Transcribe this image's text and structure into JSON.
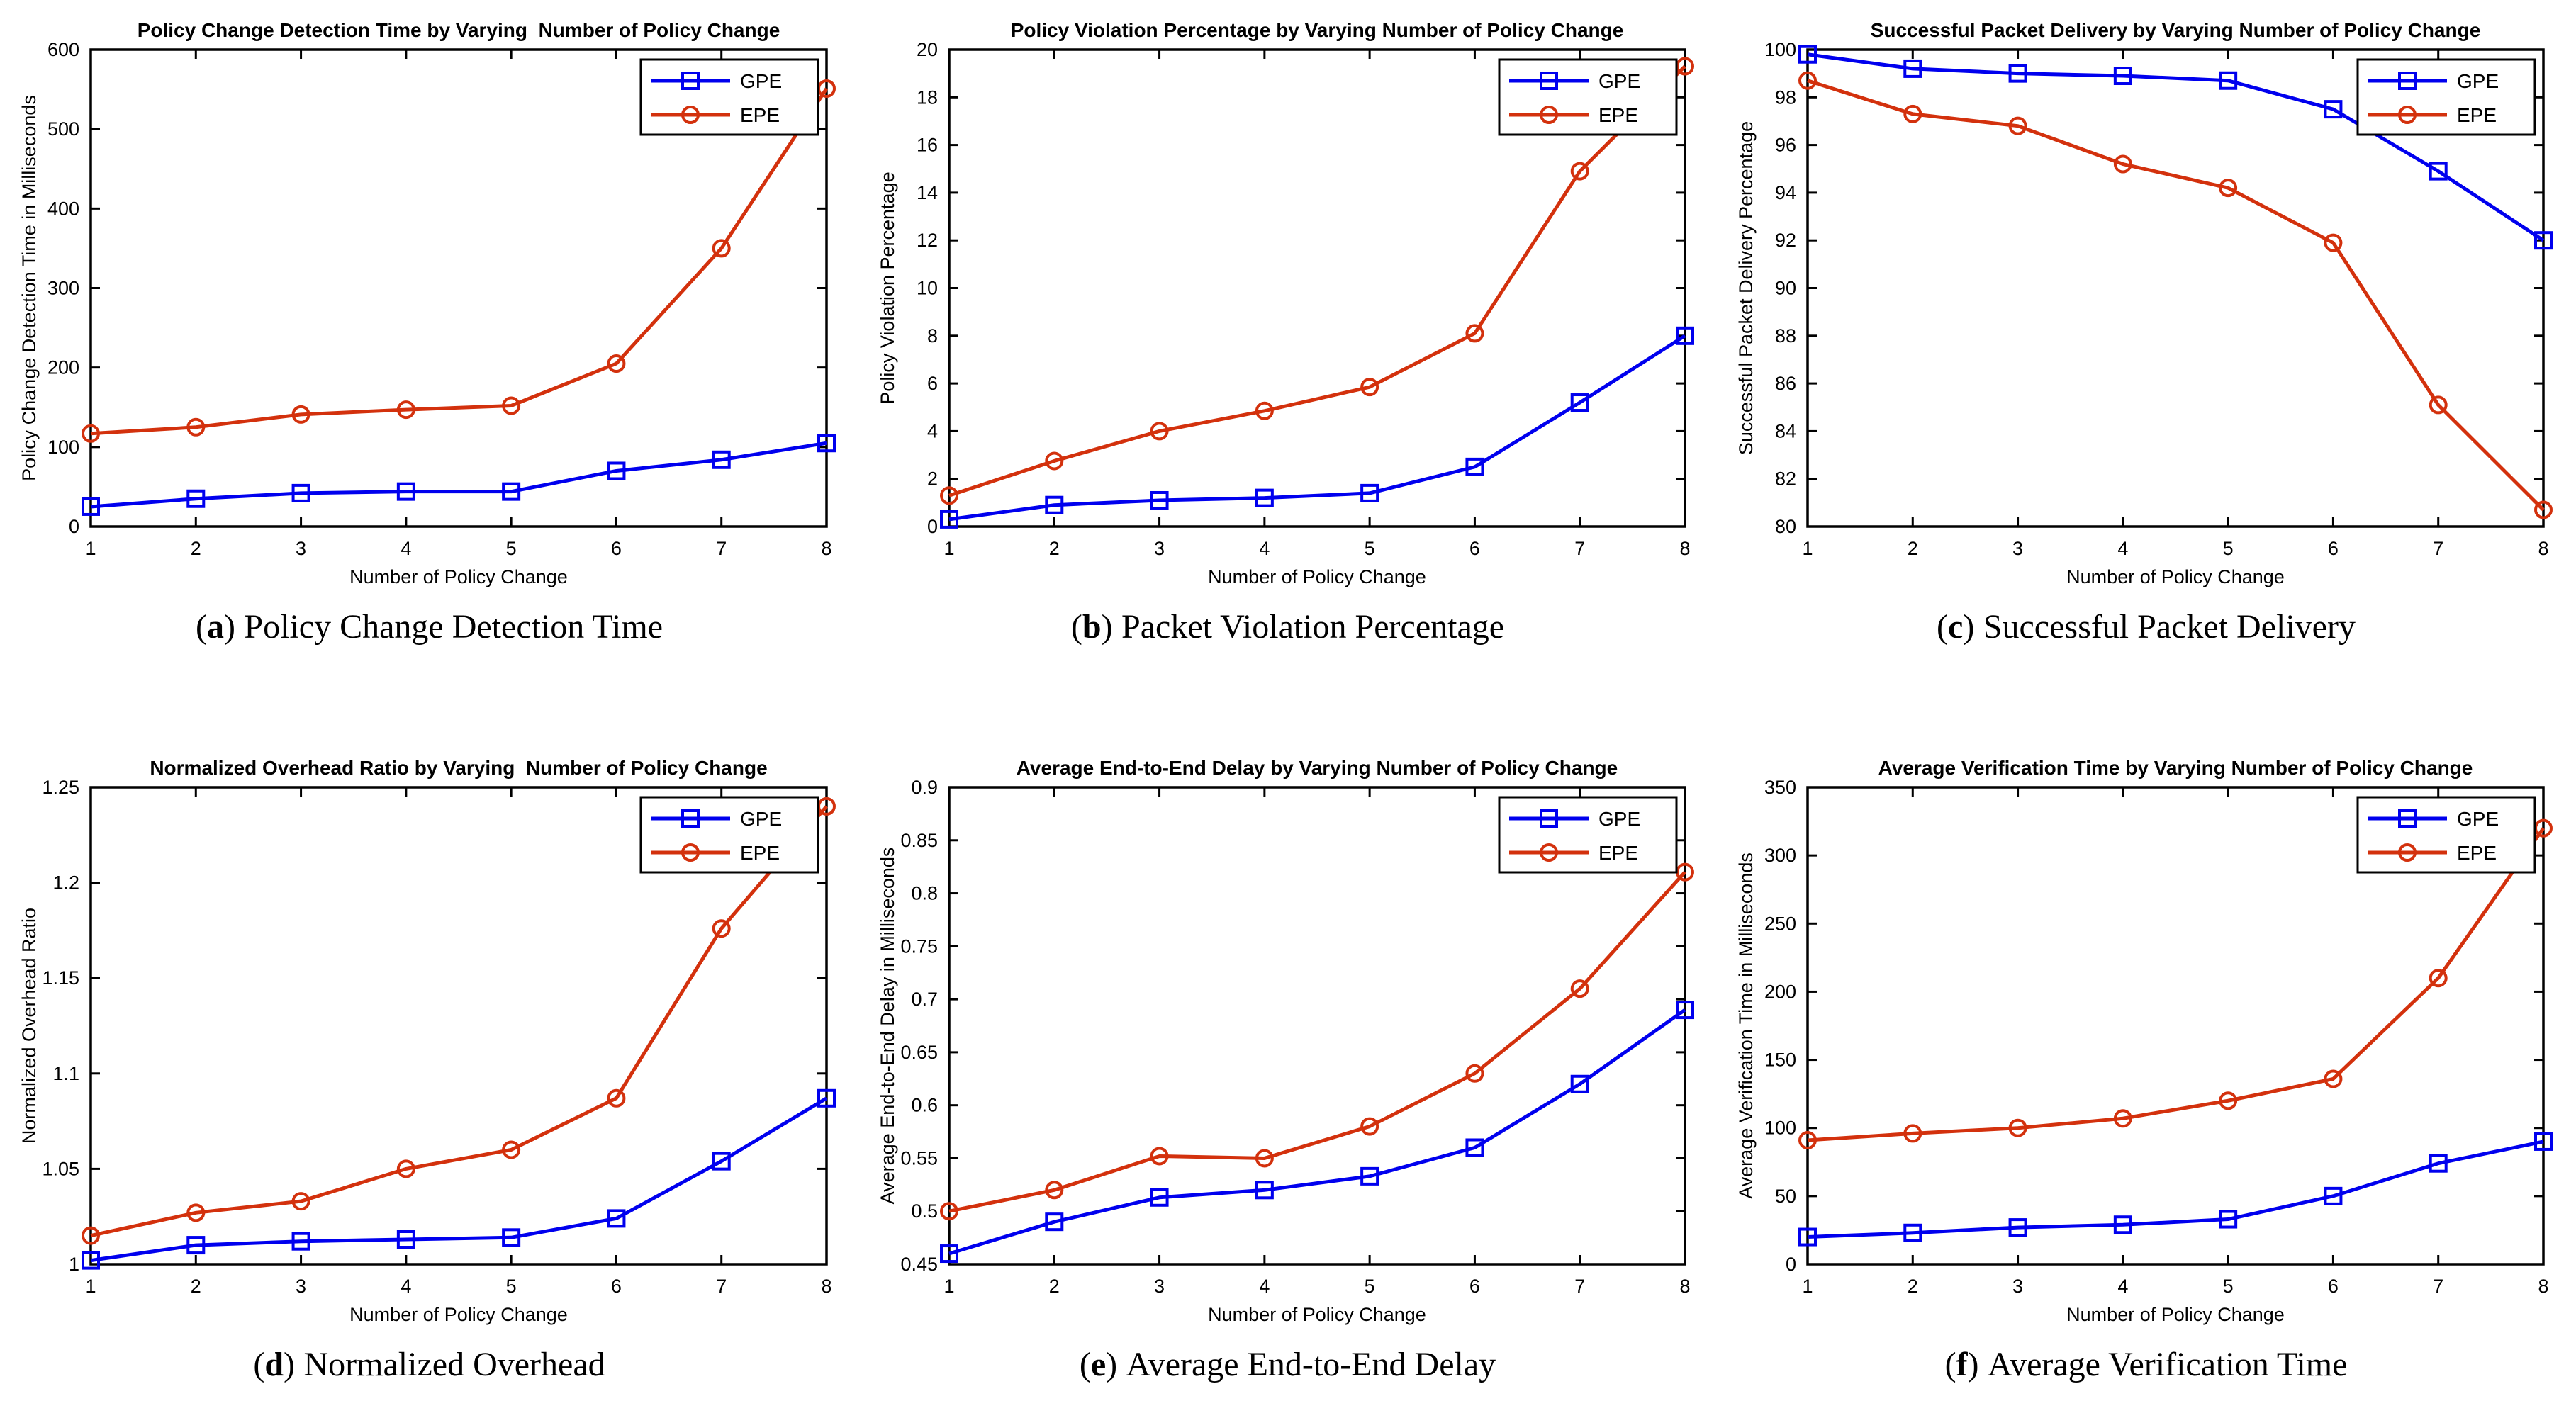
{
  "page": {
    "background": "#ffffff"
  },
  "colors": {
    "gpe": "#0000ee",
    "epe": "#d3310d",
    "axis": "#000000",
    "legend_bg": "#ffffff"
  },
  "chart_data": [
    {
      "id": "a",
      "type": "line",
      "title": "Policy Change Detection Time by Varying  Number of Policy Change",
      "xlabel": "Number of Policy Change",
      "ylabel": "Policy Change Detection Time in Milliseconds",
      "x": [
        1,
        2,
        3,
        4,
        5,
        6,
        7,
        8
      ],
      "xlim": [
        1,
        8
      ],
      "ylim": [
        0,
        600
      ],
      "xticks": [
        1,
        2,
        3,
        4,
        5,
        6,
        7,
        8
      ],
      "yticks": [
        0,
        100,
        200,
        300,
        400,
        500,
        600
      ],
      "ytick_labels": [
        "0",
        "100",
        "200",
        "300",
        "400",
        "500",
        "600"
      ],
      "grid": false,
      "legend_position": "top-right",
      "series": [
        {
          "name": "GPE",
          "color": "#0000ee",
          "marker": "square",
          "values": [
            25,
            35,
            42,
            44,
            44,
            70,
            84,
            105
          ]
        },
        {
          "name": "EPE",
          "color": "#d3310d",
          "marker": "circle",
          "values": [
            117,
            125,
            141,
            147,
            152,
            205,
            350,
            551
          ]
        }
      ],
      "caption": {
        "open": "(",
        "letter": "a",
        "close": ")",
        "text": "Policy Change Detection Time"
      }
    },
    {
      "id": "b",
      "type": "line",
      "title": "Policy Violation Percentage by Varying Number of Policy Change",
      "xlabel": "Number of Policy Change",
      "ylabel": "Policy Violation Percentage",
      "x": [
        1,
        2,
        3,
        4,
        5,
        6,
        7,
        8
      ],
      "xlim": [
        1,
        8
      ],
      "ylim": [
        0,
        20
      ],
      "xticks": [
        1,
        2,
        3,
        4,
        5,
        6,
        7,
        8
      ],
      "yticks": [
        0,
        2,
        4,
        6,
        8,
        10,
        12,
        14,
        16,
        18,
        20
      ],
      "ytick_labels": [
        "0",
        "2",
        "4",
        "6",
        "8",
        "10",
        "12",
        "14",
        "16",
        "18",
        "20"
      ],
      "grid": false,
      "legend_position": "top-right",
      "series": [
        {
          "name": "GPE",
          "color": "#0000ee",
          "marker": "square",
          "values": [
            0.3,
            0.9,
            1.1,
            1.2,
            1.4,
            2.5,
            5.2,
            8.0
          ]
        },
        {
          "name": "EPE",
          "color": "#d3310d",
          "marker": "circle",
          "values": [
            1.3,
            2.75,
            4.0,
            4.85,
            5.85,
            8.1,
            14.9,
            19.3
          ]
        }
      ],
      "caption": {
        "open": "(",
        "letter": "b",
        "close": ")",
        "text": "Packet Violation Percentage"
      }
    },
    {
      "id": "c",
      "type": "line",
      "title": "Successful Packet Delivery by Varying Number of Policy Change",
      "xlabel": "Number of Policy Change",
      "ylabel": "Successful Packet Delivery Percentage",
      "x": [
        1,
        2,
        3,
        4,
        5,
        6,
        7,
        8
      ],
      "xlim": [
        1,
        8
      ],
      "ylim": [
        80,
        100
      ],
      "xticks": [
        1,
        2,
        3,
        4,
        5,
        6,
        7,
        8
      ],
      "yticks": [
        80,
        82,
        84,
        86,
        88,
        90,
        92,
        94,
        96,
        98,
        100
      ],
      "ytick_labels": [
        "80",
        "82",
        "84",
        "86",
        "88",
        "90",
        "92",
        "94",
        "96",
        "98",
        "100"
      ],
      "grid": false,
      "legend_position": "top-right",
      "series": [
        {
          "name": "GPE",
          "color": "#0000ee",
          "marker": "square",
          "values": [
            99.8,
            99.2,
            99.0,
            98.9,
            98.7,
            97.5,
            94.9,
            92.0
          ]
        },
        {
          "name": "EPE",
          "color": "#d3310d",
          "marker": "circle",
          "values": [
            98.7,
            97.3,
            96.8,
            95.2,
            94.2,
            91.9,
            85.1,
            80.7
          ]
        }
      ],
      "caption": {
        "open": "(",
        "letter": "c",
        "close": ")",
        "text": "Successful Packet Delivery"
      }
    },
    {
      "id": "d",
      "type": "line",
      "title": "Normalized Overhead Ratio by Varying  Number of Policy Change",
      "xlabel": "Number of Policy Change",
      "ylabel": "Normalized Overhead Ratio",
      "x": [
        1,
        2,
        3,
        4,
        5,
        6,
        7,
        8
      ],
      "xlim": [
        1,
        8
      ],
      "ylim": [
        1,
        1.25
      ],
      "xticks": [
        1,
        2,
        3,
        4,
        5,
        6,
        7,
        8
      ],
      "yticks": [
        1,
        1.05,
        1.1,
        1.15,
        1.2,
        1.25
      ],
      "ytick_labels": [
        "1",
        "1.05",
        "1.1",
        "1.15",
        "1.2",
        "1.25"
      ],
      "grid": false,
      "legend_position": "top-right",
      "series": [
        {
          "name": "GPE",
          "color": "#0000ee",
          "marker": "square",
          "values": [
            1.002,
            1.01,
            1.012,
            1.013,
            1.014,
            1.024,
            1.054,
            1.087
          ]
        },
        {
          "name": "EPE",
          "color": "#d3310d",
          "marker": "circle",
          "values": [
            1.015,
            1.027,
            1.033,
            1.05,
            1.06,
            1.087,
            1.176,
            1.24
          ]
        }
      ],
      "caption": {
        "open": "(",
        "letter": "d",
        "close": ")",
        "text": "Normalized Overhead"
      }
    },
    {
      "id": "e",
      "type": "line",
      "title": "Average End-to-End Delay by Varying Number of Policy Change",
      "xlabel": "Number of Policy Change",
      "ylabel": "Average End-to-End Delay in Milliseconds",
      "x": [
        1,
        2,
        3,
        4,
        5,
        6,
        7,
        8
      ],
      "xlim": [
        1,
        8
      ],
      "ylim": [
        0.45,
        0.9
      ],
      "xticks": [
        1,
        2,
        3,
        4,
        5,
        6,
        7,
        8
      ],
      "yticks": [
        0.45,
        0.5,
        0.55,
        0.6,
        0.65,
        0.7,
        0.75,
        0.8,
        0.85,
        0.9
      ],
      "ytick_labels": [
        "0.45",
        "0.5",
        "0.55",
        "0.6",
        "0.65",
        "0.7",
        "0.75",
        "0.8",
        "0.85",
        "0.9"
      ],
      "grid": false,
      "legend_position": "top-right",
      "series": [
        {
          "name": "GPE",
          "color": "#0000ee",
          "marker": "square",
          "values": [
            0.46,
            0.49,
            0.513,
            0.52,
            0.533,
            0.56,
            0.62,
            0.69
          ]
        },
        {
          "name": "EPE",
          "color": "#d3310d",
          "marker": "circle",
          "values": [
            0.5,
            0.52,
            0.552,
            0.55,
            0.58,
            0.63,
            0.71,
            0.82
          ]
        }
      ],
      "caption": {
        "open": "(",
        "letter": "e",
        "close": ")",
        "text": "Average End-to-End Delay"
      }
    },
    {
      "id": "f",
      "type": "line",
      "title": "Average Verification Time by Varying Number of Policy Change",
      "xlabel": "Number of Policy Change",
      "ylabel": "Average Verification Time in Milliseconds",
      "x": [
        1,
        2,
        3,
        4,
        5,
        6,
        7,
        8
      ],
      "xlim": [
        1,
        8
      ],
      "ylim": [
        0,
        350
      ],
      "xticks": [
        1,
        2,
        3,
        4,
        5,
        6,
        7,
        8
      ],
      "yticks": [
        0,
        50,
        100,
        150,
        200,
        250,
        300,
        350
      ],
      "ytick_labels": [
        "0",
        "50",
        "100",
        "150",
        "200",
        "250",
        "300",
        "350"
      ],
      "grid": false,
      "legend_position": "top-right",
      "series": [
        {
          "name": "GPE",
          "color": "#0000ee",
          "marker": "square",
          "values": [
            20,
            23,
            27,
            29,
            33,
            50,
            74,
            90
          ]
        },
        {
          "name": "EPE",
          "color": "#d3310d",
          "marker": "circle",
          "values": [
            91,
            96,
            100,
            107,
            120,
            136,
            210,
            320
          ]
        }
      ],
      "caption": {
        "open": "(",
        "letter": "f",
        "close": ")",
        "text": "Average Verification Time"
      }
    }
  ]
}
